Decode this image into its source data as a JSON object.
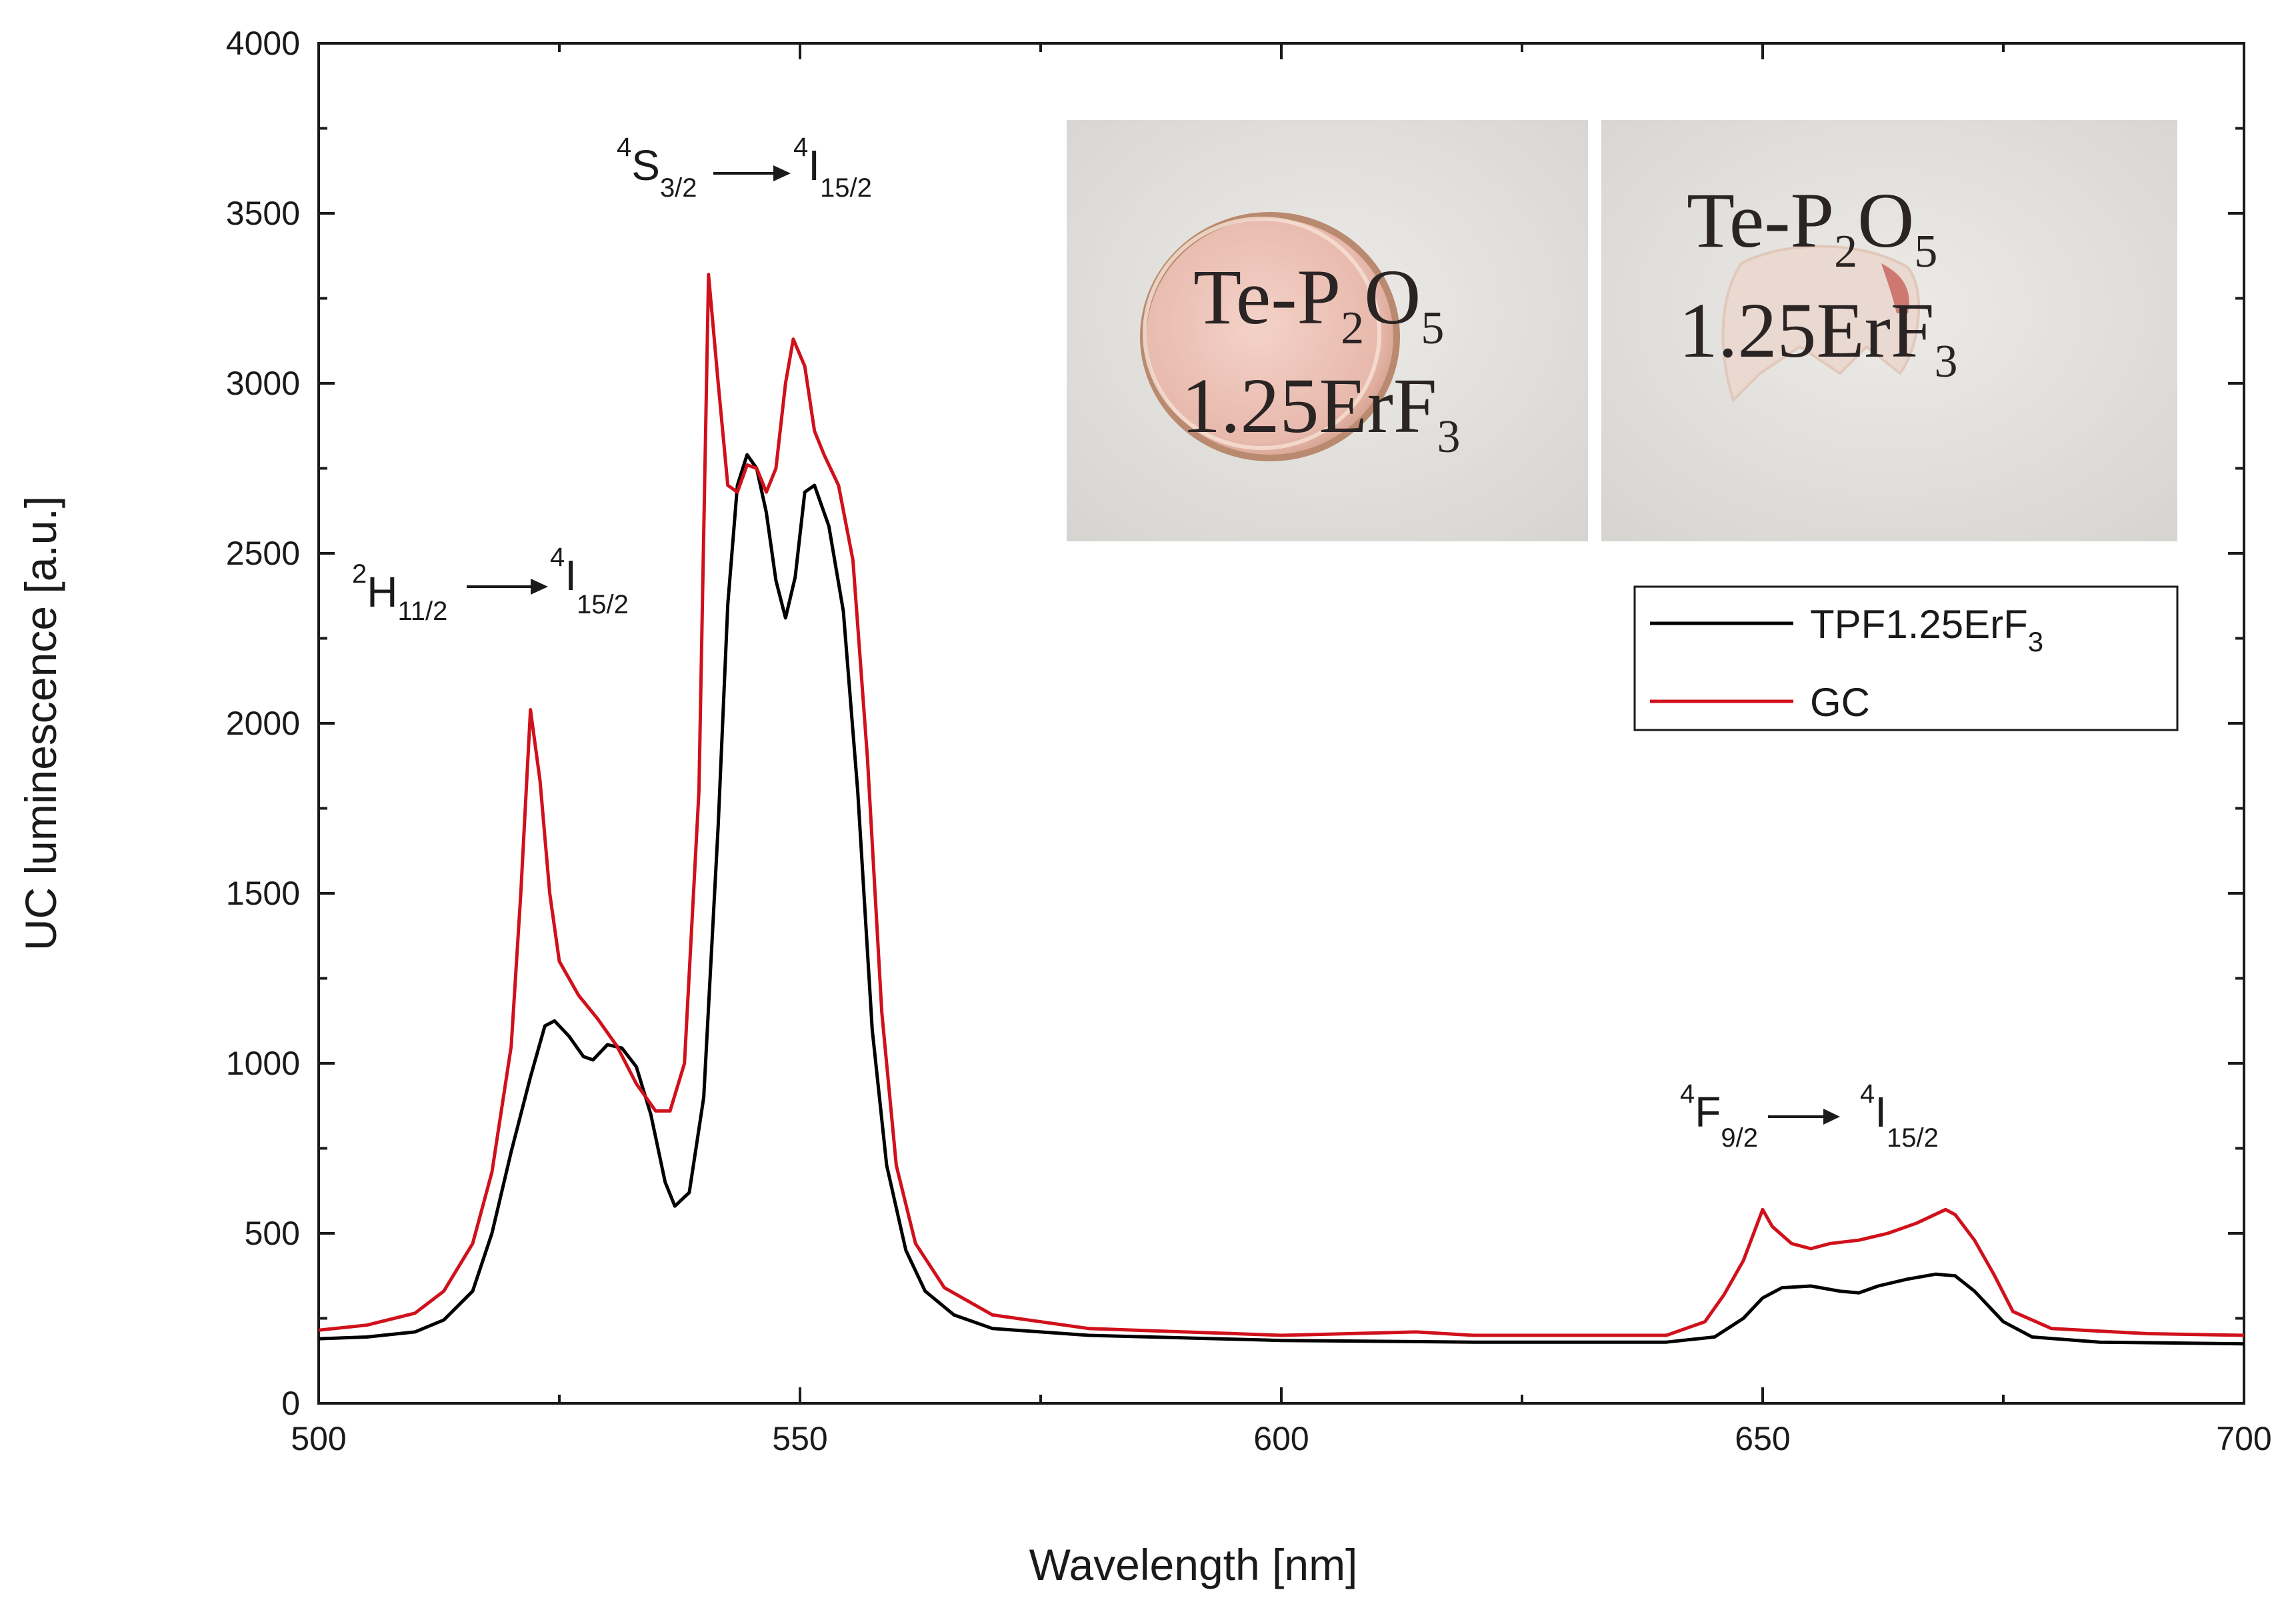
{
  "chart_data": {
    "type": "line",
    "xlabel": "Wavelength [nm]",
    "ylabel": "UC luminescence [a.u.]",
    "xlim": [
      500,
      700
    ],
    "ylim": [
      0,
      4000
    ],
    "x_ticks": [
      500,
      550,
      600,
      650,
      700
    ],
    "y_ticks": [
      0,
      500,
      1000,
      1500,
      2000,
      2500,
      3000,
      3500,
      4000
    ],
    "legend": {
      "position": "upper-right",
      "entries": [
        {
          "label": "TPF1.25ErF",
          "subscript": "3",
          "color": "#000000"
        },
        {
          "label": "GC",
          "subscript": "",
          "color": "#d0111b"
        }
      ]
    },
    "series": [
      {
        "name": "TPF1.25ErF3",
        "color": "#000000",
        "points": [
          [
            500,
            190
          ],
          [
            505,
            195
          ],
          [
            510,
            210
          ],
          [
            513,
            245
          ],
          [
            516,
            330
          ],
          [
            518,
            500
          ],
          [
            520,
            740
          ],
          [
            522,
            960
          ],
          [
            523.5,
            1110
          ],
          [
            524.5,
            1125
          ],
          [
            526,
            1080
          ],
          [
            527.5,
            1020
          ],
          [
            528.5,
            1010
          ],
          [
            530,
            1055
          ],
          [
            531.5,
            1045
          ],
          [
            533,
            990
          ],
          [
            534.5,
            850
          ],
          [
            536,
            650
          ],
          [
            537,
            580
          ],
          [
            538.5,
            620
          ],
          [
            540,
            900
          ],
          [
            541.5,
            1700
          ],
          [
            542.5,
            2350
          ],
          [
            543.5,
            2700
          ],
          [
            544.5,
            2790
          ],
          [
            545.5,
            2750
          ],
          [
            546.5,
            2620
          ],
          [
            547.5,
            2420
          ],
          [
            548.5,
            2310
          ],
          [
            549.5,
            2430
          ],
          [
            550.5,
            2680
          ],
          [
            551.5,
            2700
          ],
          [
            553,
            2580
          ],
          [
            554.5,
            2330
          ],
          [
            556,
            1800
          ],
          [
            557.5,
            1100
          ],
          [
            559,
            700
          ],
          [
            561,
            450
          ],
          [
            563,
            330
          ],
          [
            566,
            260
          ],
          [
            570,
            220
          ],
          [
            580,
            200
          ],
          [
            600,
            185
          ],
          [
            620,
            180
          ],
          [
            640,
            180
          ],
          [
            645,
            195
          ],
          [
            648,
            250
          ],
          [
            650,
            310
          ],
          [
            652,
            340
          ],
          [
            655,
            345
          ],
          [
            658,
            330
          ],
          [
            660,
            325
          ],
          [
            662,
            345
          ],
          [
            665,
            365
          ],
          [
            668,
            380
          ],
          [
            670,
            375
          ],
          [
            672,
            330
          ],
          [
            675,
            240
          ],
          [
            678,
            195
          ],
          [
            685,
            180
          ],
          [
            700,
            175
          ]
        ]
      },
      {
        "name": "GC",
        "color": "#d0111b",
        "points": [
          [
            500,
            215
          ],
          [
            505,
            230
          ],
          [
            510,
            265
          ],
          [
            513,
            330
          ],
          [
            516,
            470
          ],
          [
            518,
            680
          ],
          [
            520,
            1050
          ],
          [
            521,
            1500
          ],
          [
            522,
            2040
          ],
          [
            523,
            1830
          ],
          [
            524,
            1500
          ],
          [
            525,
            1300
          ],
          [
            527,
            1200
          ],
          [
            529,
            1130
          ],
          [
            531,
            1050
          ],
          [
            533,
            940
          ],
          [
            535,
            860
          ],
          [
            536.5,
            860
          ],
          [
            538,
            1000
          ],
          [
            539.5,
            1800
          ],
          [
            540.5,
            3320
          ],
          [
            541.5,
            3000
          ],
          [
            542.5,
            2700
          ],
          [
            543.5,
            2680
          ],
          [
            544.5,
            2760
          ],
          [
            545.5,
            2750
          ],
          [
            546.5,
            2680
          ],
          [
            547.5,
            2750
          ],
          [
            548.5,
            3000
          ],
          [
            549.3,
            3130
          ],
          [
            550.5,
            3050
          ],
          [
            551.5,
            2860
          ],
          [
            552.5,
            2790
          ],
          [
            554,
            2700
          ],
          [
            555.5,
            2480
          ],
          [
            557,
            1900
          ],
          [
            558.5,
            1150
          ],
          [
            560,
            700
          ],
          [
            562,
            470
          ],
          [
            565,
            340
          ],
          [
            570,
            260
          ],
          [
            580,
            220
          ],
          [
            600,
            200
          ],
          [
            614,
            210
          ],
          [
            620,
            200
          ],
          [
            640,
            200
          ],
          [
            644,
            240
          ],
          [
            646,
            320
          ],
          [
            648,
            420
          ],
          [
            650,
            570
          ],
          [
            651,
            520
          ],
          [
            653,
            470
          ],
          [
            655,
            455
          ],
          [
            657,
            470
          ],
          [
            660,
            480
          ],
          [
            663,
            500
          ],
          [
            666,
            530
          ],
          [
            669,
            570
          ],
          [
            670,
            555
          ],
          [
            672,
            480
          ],
          [
            674,
            380
          ],
          [
            676,
            270
          ],
          [
            680,
            220
          ],
          [
            690,
            205
          ],
          [
            700,
            200
          ]
        ]
      }
    ],
    "annotations": [
      {
        "main1": "H",
        "pre_sup1": "2",
        "sub1": "11/2",
        "main2": "I",
        "pre_sup2": "4",
        "sub2": "15/2"
      },
      {
        "main1": "S",
        "pre_sup1": "4",
        "sub1": "3/2",
        "main2": "I",
        "pre_sup2": "4",
        "sub2": "15/2"
      },
      {
        "main1": "F",
        "pre_sup1": "4",
        "sub1": "9/2",
        "main2": "I",
        "pre_sup2": "4",
        "sub2": "15/2"
      }
    ]
  },
  "inset_photos": [
    {
      "line1": "Te-P",
      "line1_sub1": "2",
      "line1_mid": "O",
      "line1_sub2": "5",
      "line2": "1.25ErF",
      "line2_sub": "3"
    },
    {
      "line1": "Te-P",
      "line1_sub1": "2",
      "line1_mid": "O",
      "line1_sub2": "5",
      "line2": "1.25ErF",
      "line2_sub": "3"
    }
  ]
}
